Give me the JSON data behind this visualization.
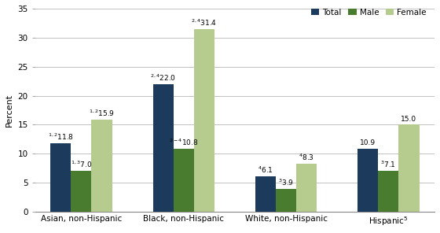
{
  "categories": [
    "Asian, non-Hispanic",
    "Black, non-Hispanic",
    "White, non-Hispanic",
    "Hispanic$^5$"
  ],
  "total": [
    11.8,
    22.0,
    6.1,
    10.9
  ],
  "male": [
    7.0,
    10.8,
    3.9,
    7.1
  ],
  "female": [
    15.9,
    31.4,
    8.3,
    15.0
  ],
  "total_superscripts": [
    "1,2",
    "2,4",
    "4",
    ""
  ],
  "male_superscripts": [
    "1,3",
    "2-4",
    "3",
    "3"
  ],
  "female_superscripts": [
    "1,2",
    "2,4",
    "4",
    ""
  ],
  "total_values_str": [
    "11.8",
    "22.0",
    "6.1",
    "10.9"
  ],
  "male_values_str": [
    "7.0",
    "10.8",
    "3.9",
    "7.1"
  ],
  "female_values_str": [
    "15.9",
    "31.4",
    "8.3",
    "15.0"
  ],
  "color_total": "#1b3a5c",
  "color_male": "#4a7c2f",
  "color_female": "#b5cc8e",
  "ylim": [
    0,
    35
  ],
  "yticks": [
    0,
    5,
    10,
    15,
    20,
    25,
    30,
    35
  ],
  "ylabel": "Percent",
  "bar_width": 0.2,
  "legend_labels": [
    "Total",
    "Male",
    "Female"
  ]
}
